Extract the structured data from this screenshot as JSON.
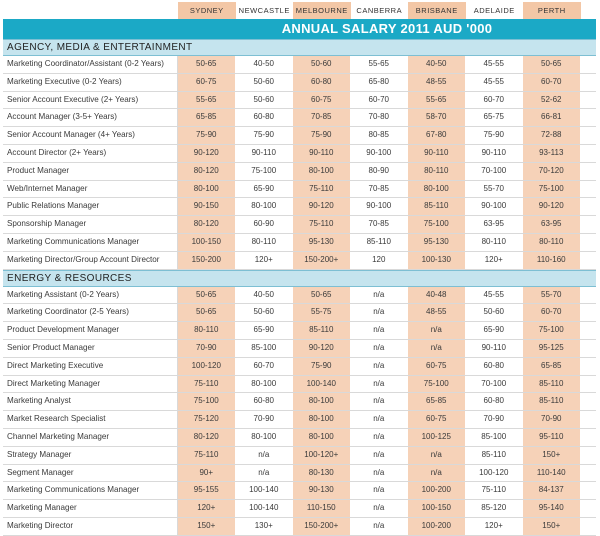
{
  "cities": [
    "SYDNEY",
    "NEWCASTLE",
    "MELBOURNE",
    "CANBERRA",
    "BRISBANE",
    "ADELAIDE",
    "PERTH"
  ],
  "title": "ANNUAL SALARY 2011 AUD '000",
  "sections": [
    {
      "name": "AGENCY, MEDIA & ENTERTAINMENT",
      "rows": [
        {
          "role": "Marketing Coordinator/Assistant (0-2 Years)",
          "values": [
            "50-65",
            "40-50",
            "50-60",
            "55-65",
            "40-50",
            "45-55",
            "50-65"
          ]
        },
        {
          "role": "Marketing Executive (0-2 Years)",
          "values": [
            "60-75",
            "50-60",
            "60-80",
            "65-80",
            "48-55",
            "45-55",
            "60-70"
          ]
        },
        {
          "role": "Senior Account Executive (2+ Years)",
          "values": [
            "55-65",
            "50-60",
            "60-75",
            "60-70",
            "55-65",
            "60-70",
            "52-62"
          ]
        },
        {
          "role": "Account Manager (3-5+ Years)",
          "values": [
            "65-85",
            "60-80",
            "70-85",
            "70-80",
            "58-70",
            "65-75",
            "66-81"
          ]
        },
        {
          "role": "Senior Account Manager (4+ Years)",
          "values": [
            "75-90",
            "75-90",
            "75-90",
            "80-85",
            "67-80",
            "75-90",
            "72-88"
          ]
        },
        {
          "role": "Account Director (2+ Years)",
          "values": [
            "90-120",
            "90-110",
            "90-110",
            "90-100",
            "90-110",
            "90-110",
            "93-113"
          ]
        },
        {
          "role": "Product Manager",
          "values": [
            "80-120",
            "75-100",
            "80-100",
            "80-90",
            "80-110",
            "70-100",
            "70-120"
          ]
        },
        {
          "role": "Web/Internet Manager",
          "values": [
            "80-100",
            "65-90",
            "75-110",
            "70-85",
            "80-100",
            "55-70",
            "75-100"
          ]
        },
        {
          "role": "Public Relations Manager",
          "values": [
            "90-150",
            "80-100",
            "90-120",
            "90-100",
            "85-110",
            "90-100",
            "90-120"
          ]
        },
        {
          "role": "Sponsorship Manager",
          "values": [
            "80-120",
            "60-90",
            "75-110",
            "70-85",
            "75-100",
            "63-95",
            "63-95"
          ]
        },
        {
          "role": "Marketing Communications Manager",
          "values": [
            "100-150",
            "80-110",
            "95-130",
            "85-110",
            "95-130",
            "80-110",
            "80-110"
          ]
        },
        {
          "role": "Marketing Director/Group Account Director",
          "values": [
            "150-200",
            "120+",
            "150-200+",
            "120",
            "100-130",
            "120+",
            "110-160"
          ]
        }
      ]
    },
    {
      "name": "ENERGY & RESOURCES",
      "rows": [
        {
          "role": "Marketing Assistant (0-2 Years)",
          "values": [
            "50-65",
            "40-50",
            "50-65",
            "n/a",
            "40-48",
            "45-55",
            "55-70"
          ]
        },
        {
          "role": "Marketing Coordinator (2-5 Years)",
          "values": [
            "50-65",
            "50-60",
            "55-75",
            "n/a",
            "48-55",
            "50-60",
            "60-70"
          ]
        },
        {
          "role": "Product Development Manager",
          "values": [
            "80-110",
            "65-90",
            "85-110",
            "n/a",
            "n/a",
            "65-90",
            "75-100"
          ]
        },
        {
          "role": "Senior Product Manager",
          "values": [
            "70-90",
            "85-100",
            "90-120",
            "n/a",
            "n/a",
            "90-110",
            "95-125"
          ]
        },
        {
          "role": "Direct Marketing Executive",
          "values": [
            "100-120",
            "60-70",
            "75-90",
            "n/a",
            "60-75",
            "60-80",
            "65-85"
          ]
        },
        {
          "role": "Direct Marketing Manager",
          "values": [
            "75-110",
            "80-100",
            "100-140",
            "n/a",
            "75-100",
            "70-100",
            "85-110"
          ]
        },
        {
          "role": "Marketing Analyst",
          "values": [
            "75-100",
            "60-80",
            "80-100",
            "n/a",
            "65-85",
            "60-80",
            "85-110"
          ]
        },
        {
          "role": "Market Research Specialist",
          "values": [
            "75-120",
            "70-90",
            "80-100",
            "n/a",
            "60-75",
            "70-90",
            "70-90"
          ]
        },
        {
          "role": "Channel Marketing Manager",
          "values": [
            "80-120",
            "80-100",
            "80-100",
            "n/a",
            "100-125",
            "85-100",
            "95-110"
          ]
        },
        {
          "role": "Strategy Manager",
          "values": [
            "75-110",
            "n/a",
            "100-120+",
            "n/a",
            "n/a",
            "85-110",
            "150+"
          ]
        },
        {
          "role": "Segment Manager",
          "values": [
            "90+",
            "n/a",
            "80-130",
            "n/a",
            "n/a",
            "100-120",
            "110-140"
          ]
        },
        {
          "role": "Marketing Communications Manager",
          "values": [
            "95-155",
            "100-140",
            "90-130",
            "n/a",
            "100-200",
            "75-110",
            "84-137"
          ]
        },
        {
          "role": "Marketing Manager",
          "values": [
            "120+",
            "100-140",
            "110-150",
            "n/a",
            "100-150",
            "85-120",
            "95-140"
          ]
        },
        {
          "role": "Marketing Director",
          "values": [
            "150+",
            "130+",
            "150-200+",
            "n/a",
            "100-200",
            "120+",
            "150+"
          ]
        }
      ]
    }
  ]
}
